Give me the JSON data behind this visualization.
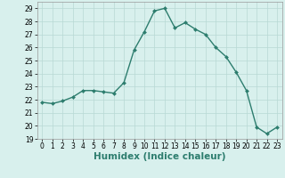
{
  "x": [
    0,
    1,
    2,
    3,
    4,
    5,
    6,
    7,
    8,
    9,
    10,
    11,
    12,
    13,
    14,
    15,
    16,
    17,
    18,
    19,
    20,
    21,
    22,
    23
  ],
  "y": [
    21.8,
    21.7,
    21.9,
    22.2,
    22.7,
    22.7,
    22.6,
    22.5,
    23.3,
    25.8,
    27.2,
    28.8,
    29.0,
    27.5,
    27.9,
    27.4,
    27.0,
    26.0,
    25.3,
    24.1,
    22.7,
    19.9,
    19.4,
    19.9
  ],
  "line_color": "#2d7d6e",
  "marker": "D",
  "marker_size": 2.0,
  "line_width": 1.0,
  "xlabel": "Humidex (Indice chaleur)",
  "ylim": [
    19,
    29.5
  ],
  "xlim": [
    -0.5,
    23.5
  ],
  "yticks": [
    19,
    20,
    21,
    22,
    23,
    24,
    25,
    26,
    27,
    28,
    29
  ],
  "xticks": [
    0,
    1,
    2,
    3,
    4,
    5,
    6,
    7,
    8,
    9,
    10,
    11,
    12,
    13,
    14,
    15,
    16,
    17,
    18,
    19,
    20,
    21,
    22,
    23
  ],
  "background_color": "#d8f0ed",
  "grid_color": "#b8d8d4",
  "tick_fontsize": 5.5,
  "xlabel_fontsize": 7.5
}
